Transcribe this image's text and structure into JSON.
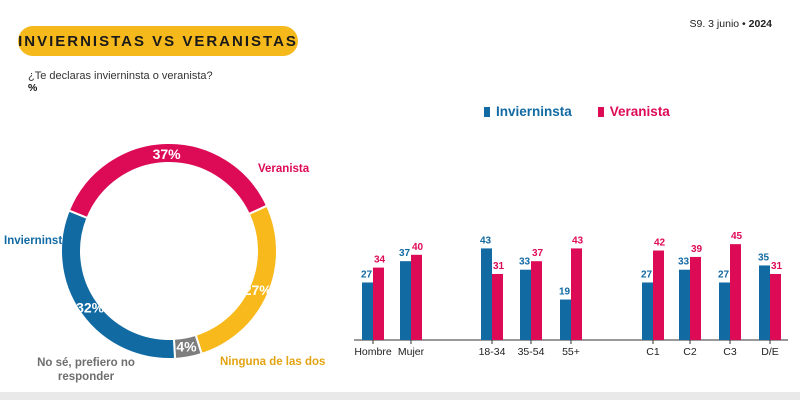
{
  "header": {
    "title": "INVIERNISTAS VS VERANISTAS",
    "date_prefix": "S9. 3 junio • ",
    "date_year": "2024"
  },
  "question": "¿Te declaras invierninsta o veranista?",
  "unit": "%",
  "colors": {
    "invierno": "#126aa3",
    "verano": "#dd0a56",
    "ninguna": "#f8b91d",
    "nosabe": "#7d7d7d",
    "axis": "#333333"
  },
  "legend": [
    {
      "label": "Invierninsta",
      "color": "#126aa3"
    },
    {
      "label": "Veranista",
      "color": "#dd0a56"
    }
  ],
  "chart_data": [
    {
      "type": "pie",
      "subtype": "donut",
      "slices": [
        {
          "name": "Veranista",
          "value": 37,
          "label": "37%",
          "color": "#dd0a56"
        },
        {
          "name": "Ninguna de las dos",
          "value": 27,
          "label": "27%",
          "color": "#f8b91d"
        },
        {
          "name": "No sé, prefiero no responder",
          "value": 4,
          "label": "4%",
          "color": "#7d7d7d"
        },
        {
          "name": "Invierninsta",
          "value": 32,
          "label": "32%",
          "color": "#126aa3"
        }
      ],
      "category_labels": {
        "veranista": "Veranista",
        "ninguna": "Ninguna de las dos",
        "nosabe_line1": "No sé, prefiero no",
        "nosabe_line2": "responder",
        "invierno": "Invierninsta"
      }
    },
    {
      "type": "bar",
      "categories": [
        "Hombre",
        "Mujer",
        "18-34",
        "35-54",
        "55+",
        "C1",
        "C2",
        "C3",
        "D/E"
      ],
      "series": [
        {
          "name": "Invierninsta",
          "values": [
            27,
            37,
            43,
            33,
            19,
            27,
            33,
            27,
            35
          ]
        },
        {
          "name": "Veranista",
          "values": [
            34,
            40,
            31,
            37,
            43,
            42,
            39,
            45,
            31
          ]
        }
      ],
      "ylim": [
        0,
        50
      ]
    }
  ]
}
